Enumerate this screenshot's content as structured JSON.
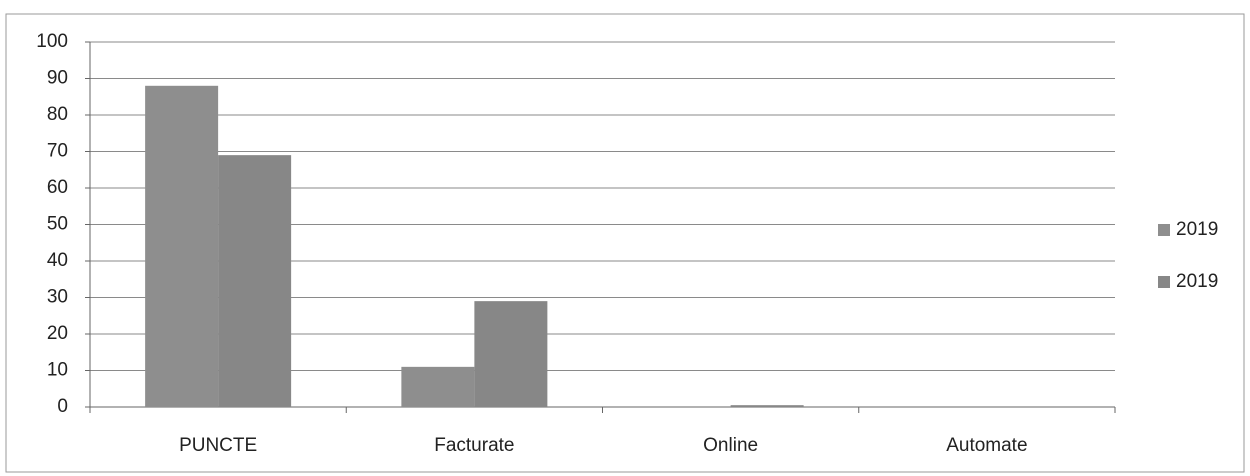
{
  "chart_data": {
    "type": "bar",
    "categories": [
      "PUNCTE",
      "Facturate",
      "Online",
      "Automate"
    ],
    "series": [
      {
        "name": "2019",
        "color": "#8e8e8e",
        "values": [
          88,
          11,
          0,
          0
        ]
      },
      {
        "name": "2019",
        "color": "#878787",
        "values": [
          69,
          29,
          0.5,
          0
        ]
      }
    ],
    "ylim": [
      0,
      100
    ],
    "yticks": [
      0,
      10,
      20,
      30,
      40,
      50,
      60,
      70,
      80,
      90,
      100
    ],
    "grid": true,
    "legend": "right"
  }
}
